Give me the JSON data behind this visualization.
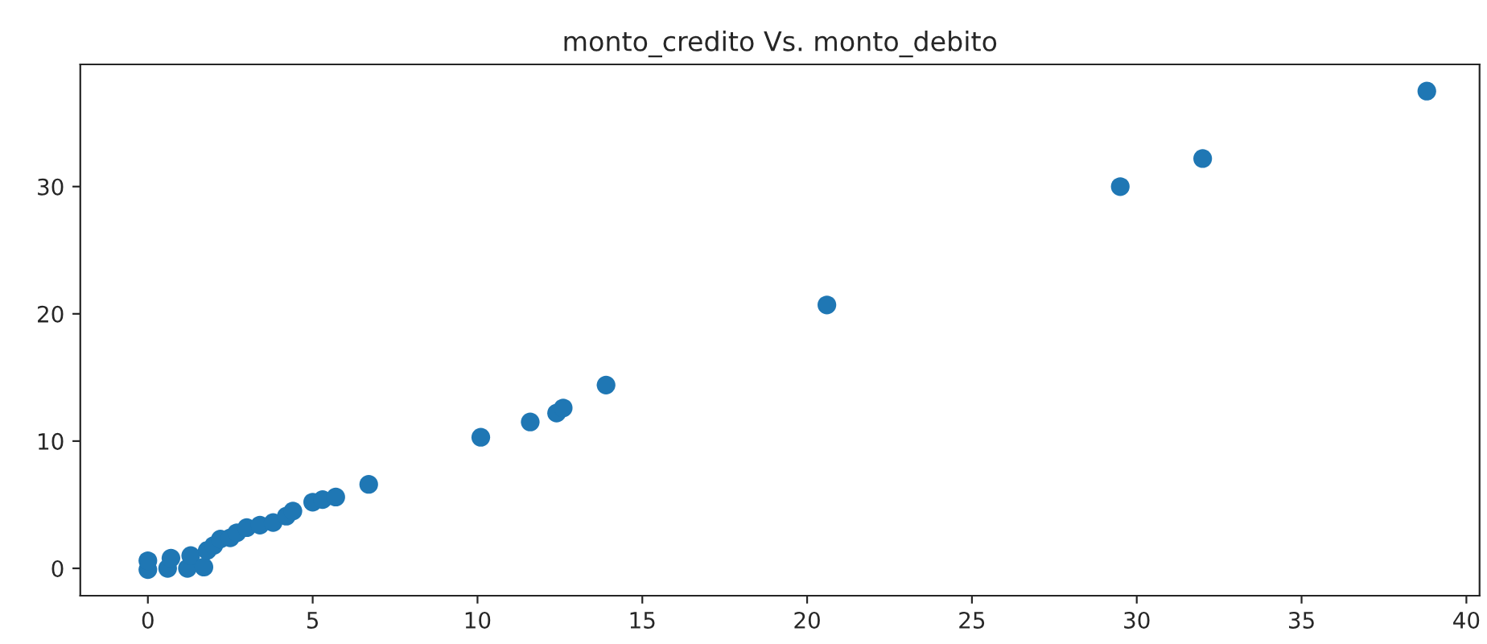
{
  "chart_data": {
    "type": "scatter",
    "title": "monto_credito Vs. monto_debito",
    "x": [
      0,
      0,
      0.6,
      0.7,
      1.2,
      1.3,
      1.7,
      1.8,
      2,
      2.2,
      2.5,
      2.7,
      3,
      3.4,
      3.8,
      4.2,
      4.4,
      5,
      5.3,
      5.7,
      6.7,
      10.1,
      11.6,
      12.4,
      12.6,
      13.9,
      20.6,
      29.5,
      32,
      38.8
    ],
    "values": [
      -0.1,
      0.6,
      0,
      0.8,
      0,
      1,
      0.1,
      1.4,
      1.8,
      2.3,
      2.4,
      2.8,
      3.2,
      3.4,
      3.6,
      4.1,
      4.5,
      5.2,
      5.4,
      5.6,
      6.6,
      10.3,
      11.5,
      12.2,
      12.6,
      14.4,
      20.7,
      30,
      32.2,
      37.5
    ],
    "color": "#1f77b4",
    "xlim": [
      -2.05,
      40.4
    ],
    "ylim": [
      -2.15,
      39.6
    ],
    "xticks": [
      0,
      5,
      10,
      15,
      20,
      25,
      30,
      35,
      40
    ],
    "yticks": [
      0,
      10,
      20,
      30
    ],
    "marker": "circle",
    "grid": false
  }
}
